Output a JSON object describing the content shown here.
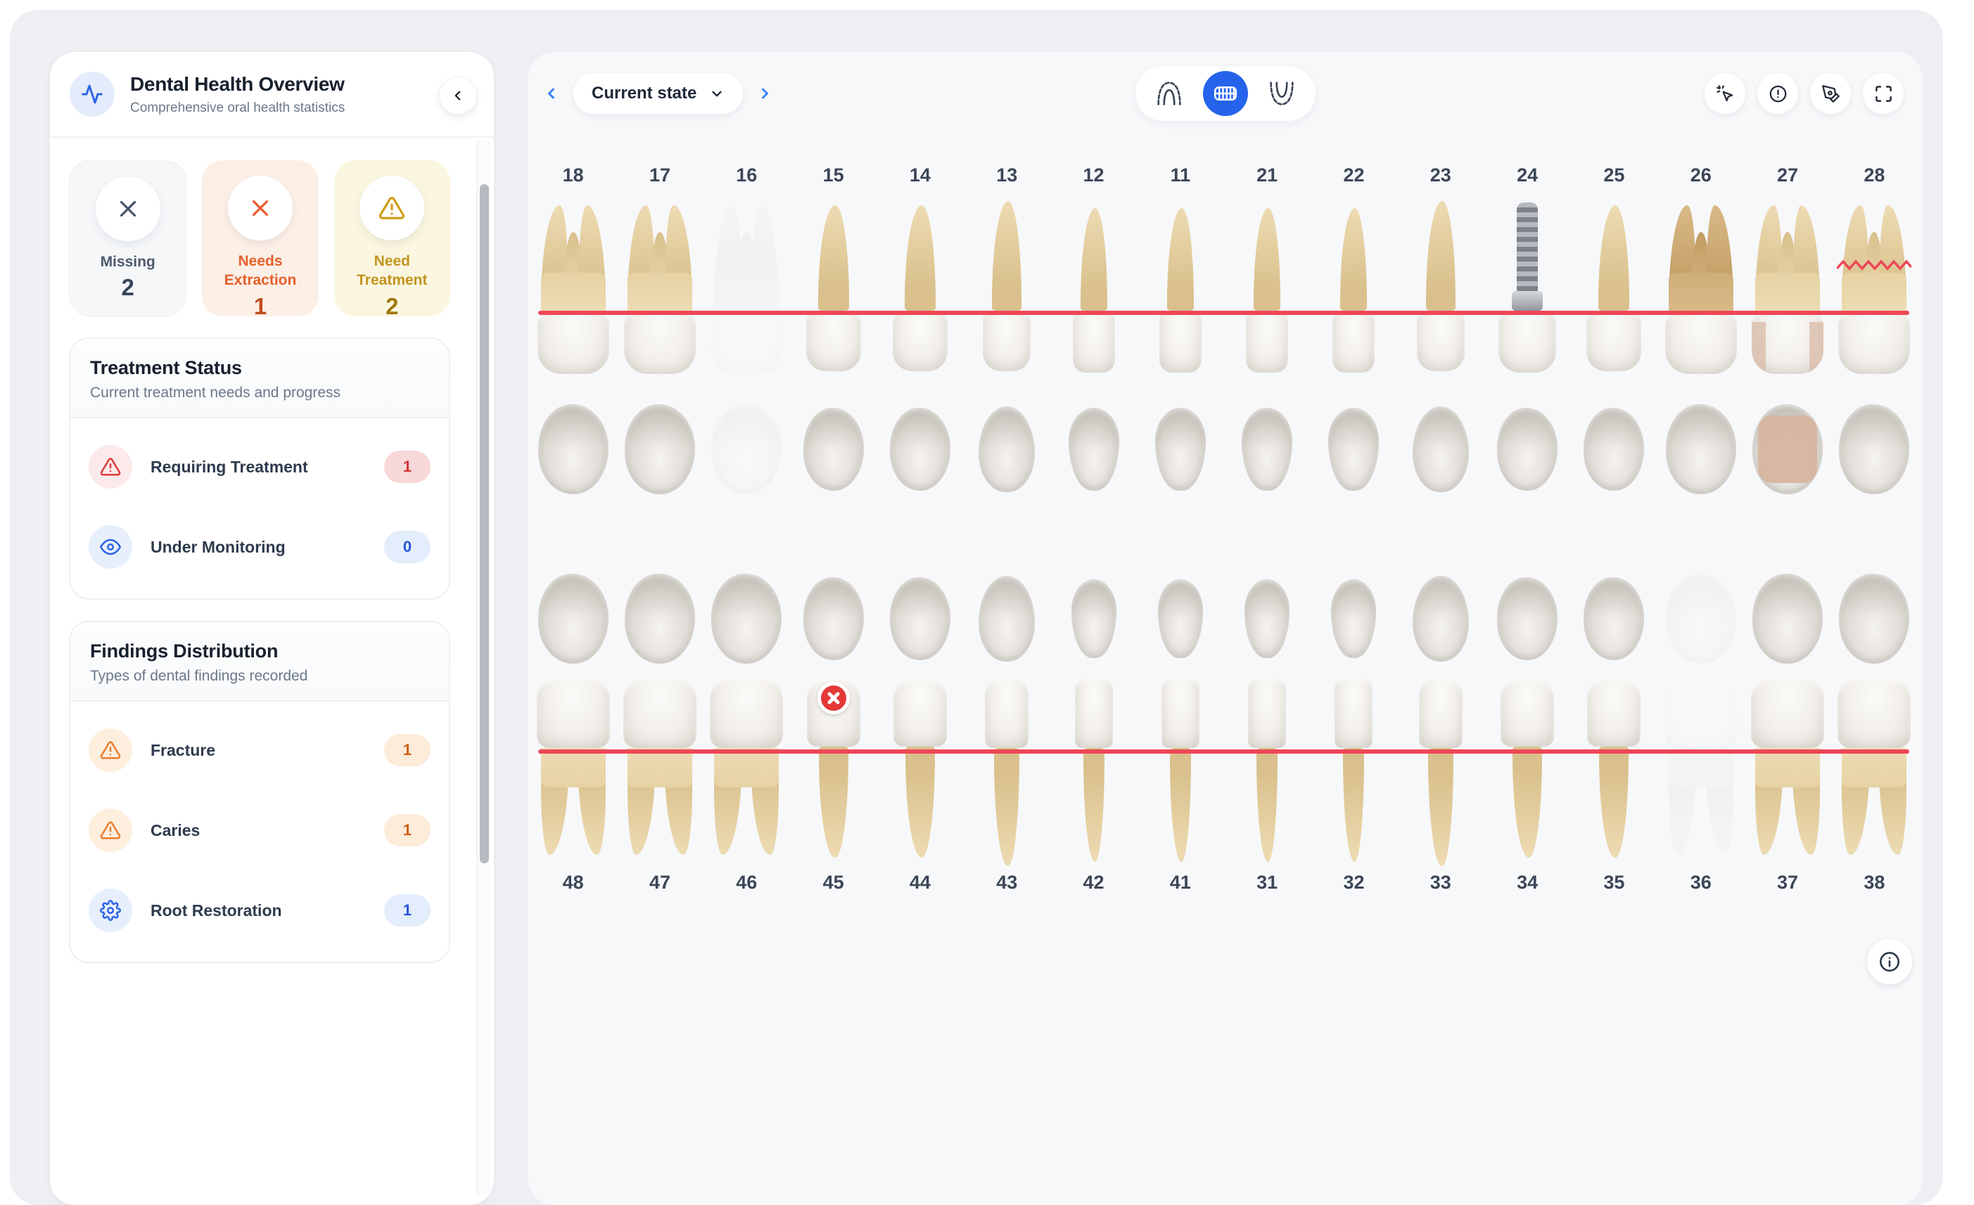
{
  "sidebar": {
    "logo_icon": "activity-pulse-icon",
    "title": "Dental Health Overview",
    "subtitle": "Comprehensive oral health statistics",
    "collapse_icon": "chevron-left-icon",
    "stats": [
      {
        "id": "missing",
        "label": "Missing",
        "value": "2",
        "icon": "x-icon",
        "theme": "gray"
      },
      {
        "id": "needs-extraction",
        "label": "Needs Extraction",
        "value": "1",
        "icon": "x-icon",
        "theme": "orange"
      },
      {
        "id": "need-treatment",
        "label": "Need Treatment",
        "value": "2",
        "icon": "warning-triangle-icon",
        "theme": "amber"
      }
    ],
    "treatment_status": {
      "title": "Treatment Status",
      "subtitle": "Current treatment needs and progress",
      "rows": [
        {
          "id": "requiring-treatment",
          "label": "Requiring Treatment",
          "value": "1",
          "icon": "warning-triangle-icon",
          "theme": "red"
        },
        {
          "id": "under-monitoring",
          "label": "Under Monitoring",
          "value": "0",
          "icon": "eye-icon",
          "theme": "blue"
        }
      ]
    },
    "findings_distribution": {
      "title": "Findings Distribution",
      "subtitle": "Types of dental findings recorded",
      "rows": [
        {
          "id": "fracture",
          "label": "Fracture",
          "value": "1",
          "icon": "warning-triangle-icon",
          "theme": "orange"
        },
        {
          "id": "caries",
          "label": "Caries",
          "value": "1",
          "icon": "warning-triangle-icon",
          "theme": "orange"
        },
        {
          "id": "root-restoration",
          "label": "Root Restoration",
          "value": "1",
          "icon": "gear-icon",
          "theme": "blue"
        }
      ]
    }
  },
  "toolbar": {
    "state_selector": {
      "label": "Current state",
      "prev_icon": "chevron-left-icon",
      "next_icon": "chevron-right-icon",
      "dropdown_icon": "chevron-down-icon"
    },
    "view_toggle": {
      "active": "full-dentition",
      "active_color": "#2563eb",
      "options": [
        {
          "id": "upper-arch",
          "icon": "upper-arch-icon"
        },
        {
          "id": "full-dentition",
          "icon": "full-dentition-icon"
        },
        {
          "id": "lower-arch",
          "icon": "lower-arch-icon"
        }
      ]
    },
    "actions": [
      {
        "id": "cursor-click",
        "icon": "cursor-click-icon"
      },
      {
        "id": "alerts",
        "icon": "alert-circle-icon"
      },
      {
        "id": "annotate",
        "icon": "pen-tool-icon"
      },
      {
        "id": "fullscreen",
        "icon": "fullscreen-icon"
      }
    ],
    "info_button_icon": "info-icon"
  },
  "chart_data": {
    "type": "dental-chart",
    "notation": "FDI",
    "gumline_color": "#ee4656",
    "upper_teeth": [
      {
        "number": "18",
        "type": "molar",
        "state": "normal"
      },
      {
        "number": "17",
        "type": "molar",
        "state": "normal"
      },
      {
        "number": "16",
        "type": "molar",
        "state": "missing"
      },
      {
        "number": "15",
        "type": "premolar",
        "state": "normal"
      },
      {
        "number": "14",
        "type": "premolar",
        "state": "normal"
      },
      {
        "number": "13",
        "type": "canine",
        "state": "normal"
      },
      {
        "number": "12",
        "type": "incisor",
        "state": "normal"
      },
      {
        "number": "11",
        "type": "incisor",
        "state": "normal"
      },
      {
        "number": "21",
        "type": "incisor",
        "state": "normal"
      },
      {
        "number": "22",
        "type": "incisor",
        "state": "normal"
      },
      {
        "number": "23",
        "type": "canine",
        "state": "normal"
      },
      {
        "number": "24",
        "type": "implant",
        "state": "implant"
      },
      {
        "number": "25",
        "type": "premolar",
        "state": "normal"
      },
      {
        "number": "26",
        "type": "molar",
        "state": "stained"
      },
      {
        "number": "27",
        "type": "molar",
        "state": "restoration"
      },
      {
        "number": "28",
        "type": "molar",
        "state": "fracture"
      }
    ],
    "lower_teeth": [
      {
        "number": "48",
        "type": "molar",
        "state": "normal"
      },
      {
        "number": "47",
        "type": "molar",
        "state": "normal"
      },
      {
        "number": "46",
        "type": "molar",
        "state": "normal"
      },
      {
        "number": "45",
        "type": "premolar",
        "state": "extraction"
      },
      {
        "number": "44",
        "type": "premolar",
        "state": "normal"
      },
      {
        "number": "43",
        "type": "canine",
        "state": "normal"
      },
      {
        "number": "42",
        "type": "incisor",
        "state": "normal"
      },
      {
        "number": "41",
        "type": "incisor",
        "state": "normal"
      },
      {
        "number": "31",
        "type": "incisor",
        "state": "normal"
      },
      {
        "number": "32",
        "type": "incisor",
        "state": "normal"
      },
      {
        "number": "33",
        "type": "canine",
        "state": "normal"
      },
      {
        "number": "34",
        "type": "premolar",
        "state": "normal"
      },
      {
        "number": "35",
        "type": "premolar",
        "state": "normal"
      },
      {
        "number": "36",
        "type": "molar",
        "state": "missing"
      },
      {
        "number": "37",
        "type": "molar",
        "state": "normal"
      },
      {
        "number": "38",
        "type": "molar",
        "state": "normal"
      }
    ]
  }
}
